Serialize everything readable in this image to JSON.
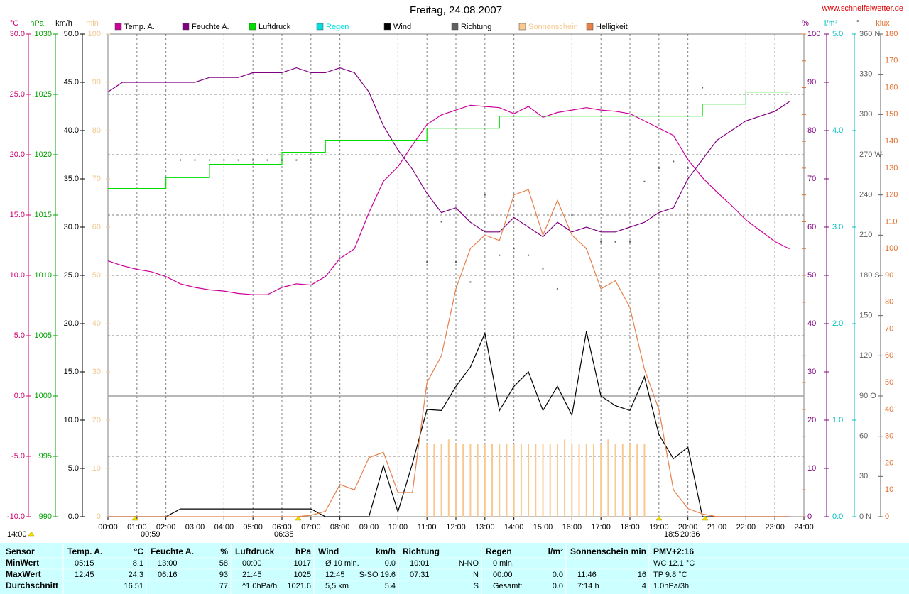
{
  "chart_data": {
    "type": "line",
    "title": "Freitag, 24.08.2007",
    "source": "www.schneifelwetter.de",
    "x": [
      0,
      0.5,
      1,
      1.5,
      2,
      2.5,
      3,
      3.5,
      4,
      4.5,
      5,
      5.5,
      6,
      6.5,
      7,
      7.5,
      8,
      8.5,
      9,
      9.5,
      10,
      10.5,
      11,
      11.5,
      12,
      12.5,
      13,
      13.5,
      14,
      14.5,
      15,
      15.5,
      16,
      16.5,
      17,
      17.5,
      18,
      18.5,
      19,
      19.5,
      20,
      20.5,
      21,
      21.5,
      22,
      22.5,
      23,
      23.5
    ],
    "xlim": [
      0,
      24
    ],
    "xticks": [
      {
        "value": 0,
        "label": "00:00"
      },
      {
        "value": 1,
        "label": "01:00"
      },
      {
        "value": 2,
        "label": "02:00"
      },
      {
        "value": 3,
        "label": "03:00"
      },
      {
        "value": 4,
        "label": "04:00"
      },
      {
        "value": 5,
        "label": "05:00"
      },
      {
        "value": 6,
        "label": "06:00"
      },
      {
        "value": 7,
        "label": "07:00"
      },
      {
        "value": 8,
        "label": "08:00"
      },
      {
        "value": 9,
        "label": "09:00"
      },
      {
        "value": 10,
        "label": "10:00"
      },
      {
        "value": 11,
        "label": "11:00"
      },
      {
        "value": 12,
        "label": "12:00"
      },
      {
        "value": 13,
        "label": "13:00"
      },
      {
        "value": 14,
        "label": "14:00"
      },
      {
        "value": 15,
        "label": "15:00"
      },
      {
        "value": 16,
        "label": "16:00"
      },
      {
        "value": 17,
        "label": "17:00"
      },
      {
        "value": 18,
        "label": "18:00"
      },
      {
        "value": 19,
        "label": "19:00"
      },
      {
        "value": 20,
        "label": "20:00"
      },
      {
        "value": 21,
        "label": "21:00"
      },
      {
        "value": 22,
        "label": "22:00"
      },
      {
        "value": 23,
        "label": "23:00"
      },
      {
        "value": 24,
        "label": "24:00"
      }
    ],
    "grid": true,
    "grid_axis": "temp",
    "axes": {
      "temp": {
        "label": "°C",
        "color": "#d0006e",
        "lim": [
          -10,
          30
        ],
        "ticks": [
          {
            "value": -10,
            "label": "-10.0"
          },
          {
            "value": -5,
            "label": "-5.0"
          },
          {
            "value": 0,
            "label": "0.0"
          },
          {
            "value": 5,
            "label": "5.0"
          },
          {
            "value": 10,
            "label": "10.0"
          },
          {
            "value": 15,
            "label": "15.0"
          },
          {
            "value": 20,
            "label": "20.0"
          },
          {
            "value": 25,
            "label": "25.0"
          },
          {
            "value": 30,
            "label": "30.0"
          }
        ]
      },
      "hpa": {
        "label": "hPa",
        "color": "#00a000",
        "lim": [
          990,
          1030
        ],
        "ticks": [
          990,
          995,
          1000,
          1005,
          1010,
          1015,
          1020,
          1025,
          1030
        ]
      },
      "kmh": {
        "label": "km/h",
        "color": "#000000",
        "lim": [
          0,
          50
        ],
        "ticks": [
          {
            "value": 0,
            "label": "0.0"
          },
          {
            "value": 5,
            "label": "5.0"
          },
          {
            "value": 10,
            "label": "10.0"
          },
          {
            "value": 15,
            "label": "15.0"
          },
          {
            "value": 20,
            "label": "20.0"
          },
          {
            "value": 25,
            "label": "25.0"
          },
          {
            "value": 30,
            "label": "30.0"
          },
          {
            "value": 35,
            "label": "35.0"
          },
          {
            "value": 40,
            "label": "40.0"
          },
          {
            "value": 45,
            "label": "45.0"
          },
          {
            "value": 50,
            "label": "50.0"
          }
        ]
      },
      "min": {
        "label": "min",
        "color": "#f0c890",
        "lim": [
          0,
          100
        ],
        "ticks": [
          0,
          10,
          20,
          30,
          40,
          50,
          60,
          70,
          80,
          90,
          100
        ]
      },
      "pct": {
        "label": "%",
        "color": "#800080",
        "lim": [
          0,
          100
        ],
        "ticks": [
          0,
          10,
          20,
          30,
          40,
          50,
          60,
          70,
          80,
          90,
          100
        ]
      },
      "rain": {
        "label": "l/m²",
        "color": "#00c0c0",
        "lim": [
          0,
          5
        ],
        "ticks": [
          {
            "value": 0,
            "label": "0.0"
          },
          {
            "value": 1,
            "label": "1.0"
          },
          {
            "value": 2,
            "label": "2.0"
          },
          {
            "value": 3,
            "label": "3.0"
          },
          {
            "value": 4,
            "label": "4.0"
          },
          {
            "value": 5,
            "label": "5.0"
          }
        ]
      },
      "deg": {
        "label": "°",
        "color": "#606060",
        "lim": [
          0,
          360
        ],
        "ticks": [
          {
            "value": 0,
            "label": "0 N"
          },
          30,
          60,
          {
            "value": 90,
            "label": "90 O"
          },
          120,
          150,
          {
            "value": 180,
            "label": "180 S"
          },
          210,
          240,
          {
            "value": 270,
            "label": "270 W"
          },
          300,
          330,
          {
            "value": 360,
            "label": "360 N"
          }
        ]
      },
      "klux": {
        "label": "klux",
        "color": "#e07030",
        "lim": [
          0,
          180
        ],
        "ticks": [
          0,
          10,
          20,
          30,
          40,
          50,
          60,
          70,
          80,
          90,
          100,
          110,
          120,
          130,
          140,
          150,
          160,
          170,
          180
        ]
      }
    },
    "series": [
      {
        "name": "Temp. A.",
        "color": "#cc0099",
        "axis": "temp",
        "values": [
          11.2,
          10.8,
          10.5,
          10.3,
          9.9,
          9.3,
          9.0,
          8.8,
          8.7,
          8.5,
          8.4,
          8.4,
          9.0,
          9.3,
          9.2,
          9.9,
          11.4,
          12.2,
          15.2,
          17.8,
          19.0,
          20.8,
          22.5,
          23.3,
          23.7,
          24.1,
          24.0,
          23.9,
          23.4,
          24.0,
          23.1,
          23.5,
          23.7,
          23.9,
          23.7,
          23.6,
          23.4,
          22.8,
          22.2,
          21.6,
          19.6,
          18.1,
          16.9,
          15.8,
          14.6,
          13.7,
          12.8,
          12.2
        ]
      },
      {
        "name": "Feuchte A.",
        "color": "#800080",
        "axis": "pct",
        "values": [
          88,
          90,
          90,
          90,
          90,
          90,
          90,
          91,
          91,
          91,
          92,
          92,
          92,
          93,
          92,
          92,
          93,
          92,
          88,
          81,
          76,
          72,
          67,
          63,
          64,
          61,
          59,
          59,
          62,
          60,
          58,
          61,
          59,
          60,
          59,
          59,
          60,
          61,
          63,
          64,
          70,
          74,
          78,
          80,
          82,
          83,
          84,
          86
        ]
      },
      {
        "name": "Luftdruck",
        "color": "#00dd00",
        "axis": "hpa",
        "step": true,
        "values": [
          1017.2,
          1017.2,
          1017.2,
          1017.2,
          1018.1,
          1018.1,
          1018.1,
          1019.2,
          1019.2,
          1019.2,
          1019.2,
          1019.2,
          1020.2,
          1020.2,
          1020.2,
          1021.2,
          1021.2,
          1021.2,
          1021.2,
          1021.2,
          1021.2,
          1021.2,
          1022.2,
          1022.2,
          1022.2,
          1022.2,
          1022.2,
          1023.2,
          1023.2,
          1023.2,
          1023.2,
          1023.2,
          1023.2,
          1023.2,
          1023.2,
          1023.2,
          1023.2,
          1023.2,
          1023.2,
          1023.2,
          1023.2,
          1024.2,
          1024.2,
          1024.2,
          1025.2,
          1025.2,
          1025.2,
          1025.2
        ]
      },
      {
        "name": "Regen",
        "color": "#00e0e0",
        "axis": "rain"
      },
      {
        "name": "Wind",
        "color": "#000000",
        "axis": "kmh",
        "values": [
          0,
          0,
          0,
          0,
          0,
          0.8,
          0.8,
          0.8,
          0.8,
          0.8,
          0.8,
          0.8,
          0.8,
          0.8,
          0.8,
          0,
          0,
          0,
          0,
          5.3,
          0.5,
          5.5,
          11.1,
          11.0,
          13.5,
          15.5,
          19.0,
          11.0,
          13.5,
          15.0,
          11.0,
          13.5,
          10.5,
          19.2,
          12.5,
          11.5,
          11.0,
          14.5,
          8.5,
          6.0,
          7.2,
          0,
          0,
          0,
          0,
          0,
          0,
          0
        ]
      },
      {
        "name": "Richtung",
        "color": "#606060",
        "axis": "deg",
        "kind": "dots",
        "x": [
          2.5,
          3,
          3.5,
          4,
          4.5,
          5,
          5.5,
          6,
          6.5,
          7,
          11,
          11.5,
          12,
          12.5,
          13,
          13.5,
          14,
          14.5,
          15,
          15.5,
          16,
          16.5,
          17,
          17.5,
          18,
          18.5,
          19,
          19.5,
          20,
          20.5
        ],
        "values": [
          266,
          266,
          266,
          266,
          266,
          266,
          266,
          266,
          266,
          266,
          190,
          220,
          190,
          175,
          240,
          195,
          200,
          195,
          185,
          170,
          225,
          200,
          205,
          205,
          205,
          250,
          260,
          265,
          260,
          320
        ]
      },
      {
        "name": "Sonnenschein",
        "color": "#f8c890",
        "axis": "min",
        "kind": "bars",
        "x": [
          11,
          11.25,
          11.5,
          11.75,
          12,
          12.25,
          12.5,
          12.75,
          13,
          13.25,
          13.5,
          13.75,
          14,
          14.25,
          14.5,
          14.75,
          15,
          15.25,
          15.5,
          15.75,
          16,
          16.25,
          16.5,
          16.75,
          17,
          17.25,
          17.5,
          17.75,
          18,
          18.25,
          18.5
        ],
        "values": [
          15,
          15,
          15,
          16,
          15,
          15,
          15,
          15,
          15,
          15,
          15,
          15,
          15,
          15,
          15,
          15,
          15,
          15,
          15,
          16,
          15,
          15,
          15,
          15,
          15,
          16,
          15,
          15,
          15,
          15,
          15
        ]
      },
      {
        "name": "Helligkeit",
        "color": "#e8804a",
        "axis": "klux",
        "values": [
          0,
          0,
          0,
          0,
          0,
          0,
          0,
          0,
          0,
          0,
          0,
          0,
          0,
          0,
          0.5,
          2,
          12,
          10,
          22,
          24,
          9,
          9,
          50,
          60,
          85,
          100,
          105,
          103,
          120,
          122,
          105,
          118,
          105,
          100,
          85,
          88,
          78,
          55,
          40,
          10,
          3,
          1,
          0,
          0,
          0,
          0,
          0,
          0
        ]
      }
    ],
    "annotations": [
      "14:00",
      "00:59",
      "06:35",
      "18:5",
      "20:36"
    ]
  },
  "table": {
    "columns": [
      {
        "title": "Sensor"
      },
      {
        "title": "Temp. A.",
        "unit": "°C"
      },
      {
        "title": "Feuchte A.",
        "unit": "%"
      },
      {
        "title": "Luftdruck",
        "unit": "hPa"
      },
      {
        "title": "Wind",
        "unit": "km/h"
      },
      {
        "title": "Richtung"
      },
      {
        "title": "Regen",
        "unit": "l/m²"
      },
      {
        "title": "Sonnenschein",
        "unit": "min"
      },
      {
        "title": "PMV+2:16"
      }
    ],
    "rows": [
      {
        "label": "MinWert",
        "cells": [
          {
            "l": "05:15",
            "r": "8.1"
          },
          {
            "l": "13:00",
            "r": "58"
          },
          {
            "l": "00:00",
            "r": "1017"
          },
          {
            "l": "Ø 10 min.",
            "r": "0.0"
          },
          {
            "l": "10:01",
            "r": "N-NO"
          },
          {
            "l": "0 min."
          },
          null,
          {
            "l": "WC 12.1 °C"
          }
        ]
      },
      {
        "label": "MaxWert",
        "cells": [
          {
            "l": "12:45",
            "r": "24.3"
          },
          {
            "l": "06:16",
            "r": "93"
          },
          {
            "l": "21:45",
            "r": "1025"
          },
          {
            "l": "12:45",
            "r": "S-SO 19.6"
          },
          {
            "l": "07:31",
            "r": "N"
          },
          {
            "l": "00:00",
            "r": "0.0"
          },
          {
            "l": "11:46",
            "r": "16"
          },
          {
            "l": "TP 9.8 °C"
          }
        ]
      },
      {
        "label": "Durchschnitt",
        "cells": [
          {
            "r": "16.51"
          },
          {
            "r": "77"
          },
          {
            "l": "^1.0hPa/h",
            "r": "1021.6"
          },
          {
            "l": "5,5 km",
            "r": "5.4"
          },
          {
            "r": "S"
          },
          {
            "l": "Gesamt:",
            "r": "0.0"
          },
          {
            "l": "7:14 h",
            "r": "4"
          },
          {
            "l": "1.0hPa/3h"
          }
        ]
      }
    ]
  }
}
